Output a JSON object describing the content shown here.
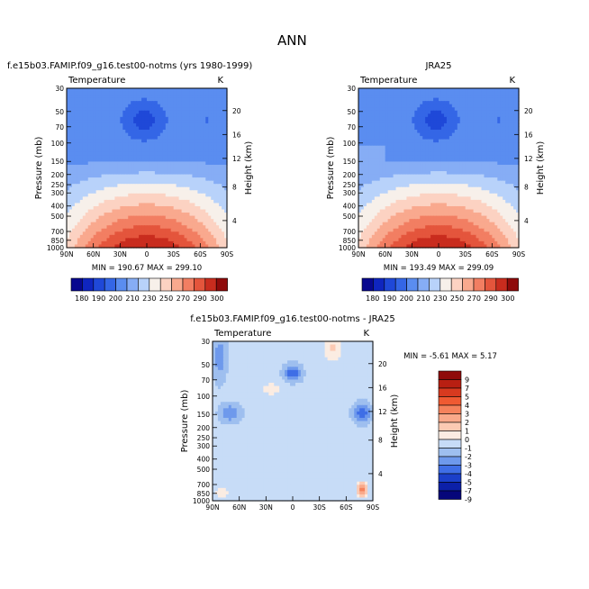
{
  "page_title": "ANN",
  "chart_data": [
    {
      "type": "heatmap",
      "title": "f.e15b03.FAMIP.f09_g16.test00-notms (yrs 1980-1999)",
      "variable_label": "Temperature",
      "units": "K",
      "xlabel": "",
      "ylabel": "Pressure (mb)",
      "y2label": "Height (km)",
      "x_ticks": [
        "90N",
        "60N",
        "30N",
        "0",
        "30S",
        "60S",
        "90S"
      ],
      "y_ticks": [
        "30",
        "50",
        "70",
        "100",
        "150",
        "200",
        "250",
        "300",
        "400",
        "500",
        "700",
        "850",
        "1000"
      ],
      "y2_ticks": [
        "4",
        "8",
        "12",
        "16",
        "20"
      ],
      "min_max_text": "MIN = 190.67    MAX = 299.10",
      "min": 190.67,
      "max": 299.1,
      "colorbar_labels": [
        "180",
        "190",
        "200",
        "210",
        "230",
        "250",
        "270",
        "290",
        "300"
      ],
      "colorbar_orientation": "horizontal"
    },
    {
      "type": "heatmap",
      "title": "JRA25",
      "variable_label": "Temperature",
      "units": "K",
      "xlabel": "",
      "ylabel": "Pressure (mb)",
      "y2label": "Height (km)",
      "x_ticks": [
        "90N",
        "60N",
        "30N",
        "0",
        "30S",
        "60S",
        "90S"
      ],
      "y_ticks": [
        "30",
        "50",
        "70",
        "100",
        "150",
        "200",
        "250",
        "300",
        "400",
        "500",
        "700",
        "850",
        "1000"
      ],
      "y2_ticks": [
        "4",
        "8",
        "12",
        "16",
        "20"
      ],
      "min_max_text": "MIN = 193.49    MAX = 299.09",
      "min": 193.49,
      "max": 299.09,
      "colorbar_labels": [
        "180",
        "190",
        "200",
        "210",
        "230",
        "250",
        "270",
        "290",
        "300"
      ],
      "colorbar_orientation": "horizontal"
    },
    {
      "type": "heatmap",
      "title": "f.e15b03.FAMIP.f09_g16.test00-notms - JRA25",
      "variable_label": "Temperature",
      "units": "K",
      "xlabel": "",
      "ylabel": "Pressure (mb)",
      "y2label": "Height (km)",
      "x_ticks": [
        "90N",
        "60N",
        "30N",
        "0",
        "30S",
        "60S",
        "90S"
      ],
      "y_ticks": [
        "30",
        "50",
        "70",
        "100",
        "150",
        "200",
        "250",
        "300",
        "400",
        "500",
        "700",
        "850",
        "1000"
      ],
      "y2_ticks": [
        "4",
        "8",
        "12",
        "16",
        "20"
      ],
      "min_max_text": "MIN =   -5.61    MAX =     5.17",
      "min": -5.61,
      "max": 5.17,
      "colorbar_labels": [
        "9",
        "7",
        "5",
        "4",
        "3",
        "2",
        "1",
        "0",
        "-1",
        "-2",
        "-3",
        "-4",
        "-5",
        "-7",
        "-9"
      ],
      "colorbar_orientation": "vertical"
    }
  ],
  "colors": {
    "abs_palette": [
      "#08088f",
      "#0f25bf",
      "#1f48d8",
      "#3466e6",
      "#5a8df0",
      "#86adf5",
      "#b8d2fa",
      "#f7f0ea",
      "#fcd2c2",
      "#f9a98e",
      "#f27e62",
      "#e4553c",
      "#c92c1e",
      "#8f0a0a"
    ],
    "diff_palette": [
      "#8f0a0a",
      "#b81f12",
      "#d83a1f",
      "#ef5a32",
      "#f5825c",
      "#f9a98a",
      "#fccab3",
      "#fbece2",
      "#c7dcf7",
      "#9ebfef",
      "#6e99ec",
      "#3f6ee6",
      "#1b3fc9",
      "#0c20a8",
      "#06067a"
    ]
  }
}
